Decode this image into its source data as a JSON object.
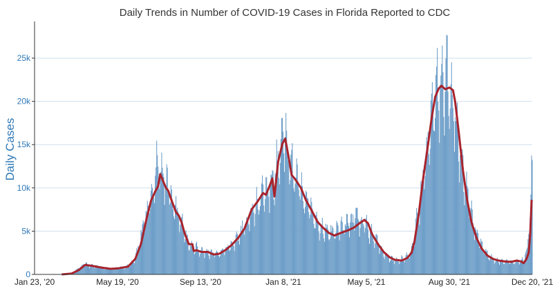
{
  "chart_data": {
    "type": "bar",
    "title": "Daily Trends in Number of COVID-19 Cases in Florida Reported to CDC",
    "xlabel": "",
    "ylabel": "Daily Cases",
    "x_tick_labels": [
      "Jan 23, '20",
      "May 19, '20",
      "Sep 13, '20",
      "Jan 8, '21",
      "May 5, '21",
      "Aug 30, '21",
      "Dec 20, '21"
    ],
    "y_tick_labels": [
      "0",
      "5k",
      "10k",
      "15k",
      "20k",
      "25k"
    ],
    "y_tick_values": [
      0,
      5000,
      10000,
      15000,
      20000,
      25000
    ],
    "x_range": [
      "2020-01-23",
      "2021-12-20"
    ],
    "ylim": [
      0,
      29000
    ],
    "grid": "horizontal",
    "series": [
      {
        "type": "bar",
        "description": "daily cases",
        "points": [
          [
            "2020-03-01",
            0
          ],
          [
            "2020-03-15",
            100
          ],
          [
            "2020-03-25",
            700
          ],
          [
            "2020-04-02",
            1200
          ],
          [
            "2020-04-10",
            1000
          ],
          [
            "2020-04-20",
            900
          ],
          [
            "2020-05-01",
            700
          ],
          [
            "2020-05-10",
            650
          ],
          [
            "2020-05-19",
            750
          ],
          [
            "2020-05-28",
            800
          ],
          [
            "2020-06-05",
            1100
          ],
          [
            "2020-06-12",
            1800
          ],
          [
            "2020-06-18",
            3500
          ],
          [
            "2020-06-24",
            6000
          ],
          [
            "2020-06-30",
            7500
          ],
          [
            "2020-07-04",
            9000
          ],
          [
            "2020-07-08",
            10000
          ],
          [
            "2020-07-12",
            12500
          ],
          [
            "2020-07-16",
            12000
          ],
          [
            "2020-07-20",
            11500
          ],
          [
            "2020-07-24",
            11000
          ],
          [
            "2020-07-28",
            10000
          ],
          [
            "2020-08-03",
            8500
          ],
          [
            "2020-08-08",
            7500
          ],
          [
            "2020-08-14",
            6500
          ],
          [
            "2020-08-20",
            5000
          ],
          [
            "2020-08-26",
            3500
          ],
          [
            "2020-09-01",
            3000
          ],
          [
            "2020-09-07",
            3000
          ],
          [
            "2020-09-13",
            2700
          ],
          [
            "2020-09-20",
            2600
          ],
          [
            "2020-09-27",
            2500
          ],
          [
            "2020-10-05",
            2400
          ],
          [
            "2020-10-12",
            2600
          ],
          [
            "2020-10-20",
            3000
          ],
          [
            "2020-10-28",
            3600
          ],
          [
            "2020-11-05",
            4500
          ],
          [
            "2020-11-12",
            5500
          ],
          [
            "2020-11-20",
            7000
          ],
          [
            "2020-11-28",
            7800
          ],
          [
            "2020-12-05",
            9000
          ],
          [
            "2020-12-12",
            9500
          ],
          [
            "2020-12-18",
            10500
          ],
          [
            "2020-12-24",
            11000
          ],
          [
            "2020-12-29",
            13000
          ],
          [
            "2021-01-03",
            14500
          ],
          [
            "2021-01-07",
            16000
          ],
          [
            "2021-01-11",
            15000
          ],
          [
            "2021-01-16",
            12500
          ],
          [
            "2021-01-22",
            11500
          ],
          [
            "2021-01-28",
            10500
          ],
          [
            "2021-02-04",
            9000
          ],
          [
            "2021-02-10",
            8000
          ],
          [
            "2021-02-18",
            6500
          ],
          [
            "2021-02-26",
            5500
          ],
          [
            "2021-03-06",
            5000
          ],
          [
            "2021-03-15",
            4800
          ],
          [
            "2021-03-24",
            5000
          ],
          [
            "2021-04-02",
            5500
          ],
          [
            "2021-04-10",
            6000
          ],
          [
            "2021-04-18",
            6500
          ],
          [
            "2021-04-25",
            6000
          ],
          [
            "2021-05-02",
            5500
          ],
          [
            "2021-05-10",
            4500
          ],
          [
            "2021-05-18",
            3500
          ],
          [
            "2021-05-26",
            2500
          ],
          [
            "2021-06-04",
            1800
          ],
          [
            "2021-06-14",
            1600
          ],
          [
            "2021-06-24",
            1800
          ],
          [
            "2021-07-03",
            2500
          ],
          [
            "2021-07-10",
            5500
          ],
          [
            "2021-07-17",
            9000
          ],
          [
            "2021-07-24",
            13500
          ],
          [
            "2021-07-31",
            17500
          ],
          [
            "2021-08-06",
            20500
          ],
          [
            "2021-08-12",
            22000
          ],
          [
            "2021-08-18",
            22500
          ],
          [
            "2021-08-24",
            22000
          ],
          [
            "2021-08-30",
            20000
          ],
          [
            "2021-09-05",
            17000
          ],
          [
            "2021-09-11",
            14000
          ],
          [
            "2021-09-18",
            10500
          ],
          [
            "2021-09-25",
            7500
          ],
          [
            "2021-10-02",
            5000
          ],
          [
            "2021-10-10",
            3200
          ],
          [
            "2021-10-18",
            2300
          ],
          [
            "2021-10-26",
            1800
          ],
          [
            "2021-11-04",
            1500
          ],
          [
            "2021-11-14",
            1500
          ],
          [
            "2021-11-24",
            1400
          ],
          [
            "2021-12-01",
            1500
          ],
          [
            "2021-12-08",
            1800
          ],
          [
            "2021-12-13",
            3000
          ],
          [
            "2021-12-16",
            6000
          ],
          [
            "2021-12-18",
            9500
          ],
          [
            "2021-12-19",
            11000
          ],
          [
            "2021-12-20",
            13000
          ]
        ]
      },
      {
        "type": "line",
        "description": "7-day moving average",
        "points": [
          [
            "2020-03-01",
            0
          ],
          [
            "2020-03-15",
            100
          ],
          [
            "2020-03-25",
            500
          ],
          [
            "2020-04-03",
            1100
          ],
          [
            "2020-04-12",
            1000
          ],
          [
            "2020-04-25",
            800
          ],
          [
            "2020-05-08",
            650
          ],
          [
            "2020-05-19",
            700
          ],
          [
            "2020-06-02",
            900
          ],
          [
            "2020-06-12",
            1800
          ],
          [
            "2020-06-20",
            3500
          ],
          [
            "2020-06-28",
            6500
          ],
          [
            "2020-07-04",
            8500
          ],
          [
            "2020-07-10",
            9600
          ],
          [
            "2020-07-14",
            10200
          ],
          [
            "2020-07-17",
            11600
          ],
          [
            "2020-07-21",
            10800
          ],
          [
            "2020-07-25",
            10000
          ],
          [
            "2020-07-28",
            9700
          ],
          [
            "2020-08-03",
            8300
          ],
          [
            "2020-08-08",
            7200
          ],
          [
            "2020-08-12",
            6800
          ],
          [
            "2020-08-16",
            6000
          ],
          [
            "2020-08-20",
            4800
          ],
          [
            "2020-08-26",
            3500
          ],
          [
            "2020-08-31",
            3500
          ],
          [
            "2020-09-02",
            2700
          ],
          [
            "2020-09-06",
            2800
          ],
          [
            "2020-09-13",
            2600
          ],
          [
            "2020-09-22",
            2600
          ],
          [
            "2020-09-30",
            2300
          ],
          [
            "2020-10-08",
            2400
          ],
          [
            "2020-10-16",
            2800
          ],
          [
            "2020-10-25",
            3400
          ],
          [
            "2020-11-03",
            4200
          ],
          [
            "2020-11-12",
            5300
          ],
          [
            "2020-11-22",
            7500
          ],
          [
            "2020-12-01",
            8500
          ],
          [
            "2020-12-08",
            9400
          ],
          [
            "2020-12-12",
            9200
          ],
          [
            "2020-12-17",
            10200
          ],
          [
            "2020-12-21",
            11100
          ],
          [
            "2020-12-24",
            9000
          ],
          [
            "2020-12-29",
            13000
          ],
          [
            "2021-01-04",
            15100
          ],
          [
            "2021-01-08",
            15700
          ],
          [
            "2021-01-13",
            13500
          ],
          [
            "2021-01-17",
            11500
          ],
          [
            "2021-01-22",
            11000
          ],
          [
            "2021-01-30",
            10000
          ],
          [
            "2021-02-06",
            8600
          ],
          [
            "2021-02-14",
            7400
          ],
          [
            "2021-02-22",
            6100
          ],
          [
            "2021-03-02",
            5400
          ],
          [
            "2021-03-10",
            4800
          ],
          [
            "2021-03-18",
            4500
          ],
          [
            "2021-03-27",
            4800
          ],
          [
            "2021-04-06",
            5100
          ],
          [
            "2021-04-14",
            5400
          ],
          [
            "2021-04-22",
            5900
          ],
          [
            "2021-04-29",
            6300
          ],
          [
            "2021-05-04",
            5900
          ],
          [
            "2021-05-10",
            4600
          ],
          [
            "2021-05-18",
            3500
          ],
          [
            "2021-05-26",
            2600
          ],
          [
            "2021-06-03",
            2000
          ],
          [
            "2021-06-10",
            1700
          ],
          [
            "2021-06-20",
            1600
          ],
          [
            "2021-06-28",
            1900
          ],
          [
            "2021-07-04",
            2500
          ],
          [
            "2021-07-08",
            3800
          ],
          [
            "2021-07-14",
            7000
          ],
          [
            "2021-07-20",
            11000
          ],
          [
            "2021-07-27",
            15000
          ],
          [
            "2021-08-01",
            18000
          ],
          [
            "2021-08-06",
            20500
          ],
          [
            "2021-08-11",
            21500
          ],
          [
            "2021-08-15",
            21800
          ],
          [
            "2021-08-20",
            21400
          ],
          [
            "2021-08-26",
            21600
          ],
          [
            "2021-08-31",
            21300
          ],
          [
            "2021-09-03",
            20000
          ],
          [
            "2021-09-08",
            16500
          ],
          [
            "2021-09-14",
            12000
          ],
          [
            "2021-09-20",
            8500
          ],
          [
            "2021-09-26",
            6000
          ],
          [
            "2021-10-03",
            4200
          ],
          [
            "2021-10-10",
            3000
          ],
          [
            "2021-10-18",
            2200
          ],
          [
            "2021-10-26",
            1800
          ],
          [
            "2021-11-03",
            1600
          ],
          [
            "2021-11-12",
            1500
          ],
          [
            "2021-11-20",
            1450
          ],
          [
            "2021-11-28",
            1600
          ],
          [
            "2021-12-04",
            1500
          ],
          [
            "2021-12-08",
            1300
          ],
          [
            "2021-12-12",
            1800
          ],
          [
            "2021-12-15",
            2500
          ],
          [
            "2021-12-17",
            4500
          ],
          [
            "2021-12-19",
            8500
          ],
          [
            "2021-12-20",
            8600
          ]
        ]
      }
    ],
    "colors": {
      "bars": "#6f9fc9",
      "line": "#a8232c",
      "grid": "#cfe0ee",
      "axis_text": "#2e78b7"
    }
  }
}
